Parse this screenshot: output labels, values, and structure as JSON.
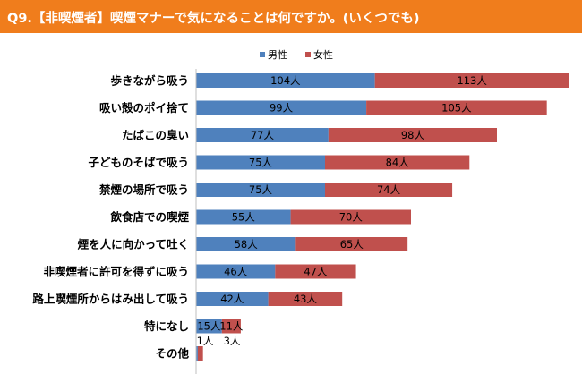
{
  "header": {
    "title": "Q9.【非喫煙者】喫煙マナーで気になることは何ですか。(いくつでも)"
  },
  "colors": {
    "header_bg": "#f07d1c",
    "male": "#4f81bd",
    "female": "#c0504d"
  },
  "chart_data": {
    "type": "bar",
    "orientation": "horizontal",
    "stacked": true,
    "categories": [
      "歩きながら吸う",
      "吸い殻のポイ捨て",
      "たばこの臭い",
      "子どものそばで吸う",
      "禁煙の場所で吸う",
      "飲食店での喫煙",
      "煙を人に向かって吐く",
      "非喫煙者に許可を得ずに吸う",
      "路上喫煙所からはみ出して吸う",
      "特になし",
      "その他"
    ],
    "series": [
      {
        "name": "男性",
        "values": [
          104,
          99,
          77,
          75,
          75,
          55,
          58,
          46,
          42,
          15,
          1
        ],
        "labels": [
          "104人",
          "99人",
          "77人",
          "75人",
          "75人",
          "55人",
          "58人",
          "46人",
          "42人",
          "15人",
          "1人"
        ]
      },
      {
        "name": "女性",
        "values": [
          113,
          105,
          98,
          84,
          74,
          70,
          65,
          47,
          43,
          11,
          3
        ],
        "labels": [
          "113人",
          "105人",
          "98人",
          "84人",
          "74人",
          "70人",
          "65人",
          "47人",
          "43人",
          "11人",
          "3人"
        ]
      }
    ],
    "legend_position": "top",
    "grid": false
  }
}
